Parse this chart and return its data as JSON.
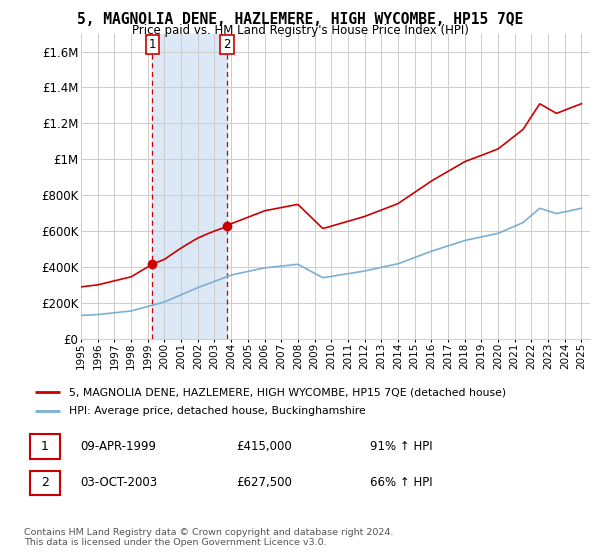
{
  "title": "5, MAGNOLIA DENE, HAZLEMERE, HIGH WYCOMBE, HP15 7QE",
  "subtitle": "Price paid vs. HM Land Registry's House Price Index (HPI)",
  "ylim": [
    0,
    1700000
  ],
  "xlim_start": 1995.0,
  "xlim_end": 2025.5,
  "yticks": [
    0,
    200000,
    400000,
    600000,
    800000,
    1000000,
    1200000,
    1400000,
    1600000
  ],
  "ytick_labels": [
    "£0",
    "£200K",
    "£400K",
    "£600K",
    "£800K",
    "£1M",
    "£1.2M",
    "£1.4M",
    "£1.6M"
  ],
  "xticks": [
    1995,
    1996,
    1997,
    1998,
    1999,
    2000,
    2001,
    2002,
    2003,
    2004,
    2005,
    2006,
    2007,
    2008,
    2009,
    2010,
    2011,
    2012,
    2013,
    2014,
    2015,
    2016,
    2017,
    2018,
    2019,
    2020,
    2021,
    2022,
    2023,
    2024,
    2025
  ],
  "transaction1_x": 1999.27,
  "transaction1_y": 415000,
  "transaction2_x": 2003.75,
  "transaction2_y": 627500,
  "red_line_color": "#cc0000",
  "blue_line_color": "#7bafd4",
  "highlight_box_color": "#dce8f5",
  "vline_color": "#cc0000",
  "legend_label_red": "5, MAGNOLIA DENE, HAZLEMERE, HIGH WYCOMBE, HP15 7QE (detached house)",
  "legend_label_blue": "HPI: Average price, detached house, Buckinghamshire",
  "annotation1_date": "09-APR-1999",
  "annotation1_price": "£415,000",
  "annotation1_hpi": "91% ↑ HPI",
  "annotation2_date": "03-OCT-2003",
  "annotation2_price": "£627,500",
  "annotation2_hpi": "66% ↑ HPI",
  "footer": "Contains HM Land Registry data © Crown copyright and database right 2024.\nThis data is licensed under the Open Government Licence v3.0.",
  "background_color": "#ffffff",
  "grid_color": "#cccccc"
}
